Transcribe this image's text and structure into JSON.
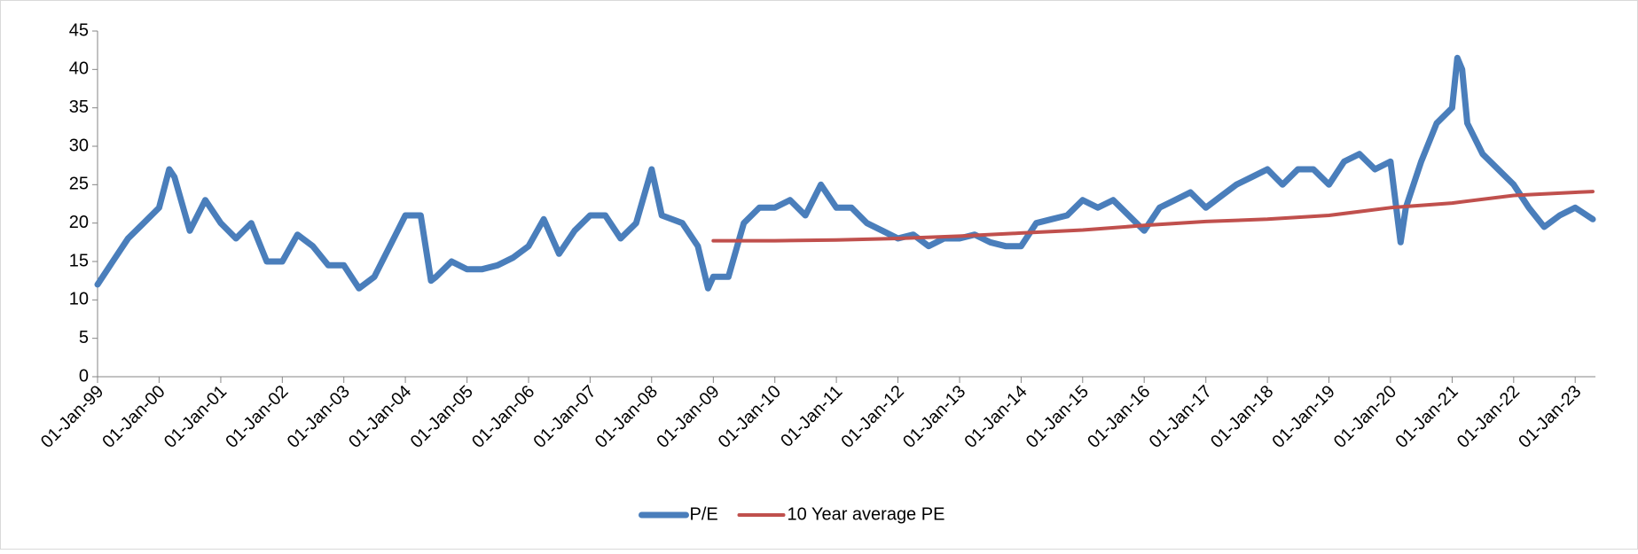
{
  "chart_data": {
    "type": "line",
    "legend": "bottom",
    "xlim": [
      "1999-01-01",
      "2023-05-01"
    ],
    "xticks": [
      {
        "value": "1999-01-01",
        "label": "01-Jan-99"
      },
      {
        "value": "2000-01-01",
        "label": "01-Jan-00"
      },
      {
        "value": "2001-01-01",
        "label": "01-Jan-01"
      },
      {
        "value": "2002-01-01",
        "label": "01-Jan-02"
      },
      {
        "value": "2003-01-01",
        "label": "01-Jan-03"
      },
      {
        "value": "2004-01-01",
        "label": "01-Jan-04"
      },
      {
        "value": "2005-01-01",
        "label": "01-Jan-05"
      },
      {
        "value": "2006-01-01",
        "label": "01-Jan-06"
      },
      {
        "value": "2007-01-01",
        "label": "01-Jan-07"
      },
      {
        "value": "2008-01-01",
        "label": "01-Jan-08"
      },
      {
        "value": "2009-01-01",
        "label": "01-Jan-09"
      },
      {
        "value": "2010-01-01",
        "label": "01-Jan-10"
      },
      {
        "value": "2011-01-01",
        "label": "01-Jan-11"
      },
      {
        "value": "2012-01-01",
        "label": "01-Jan-12"
      },
      {
        "value": "2013-01-01",
        "label": "01-Jan-13"
      },
      {
        "value": "2014-01-01",
        "label": "01-Jan-14"
      },
      {
        "value": "2015-01-01",
        "label": "01-Jan-15"
      },
      {
        "value": "2016-01-01",
        "label": "01-Jan-16"
      },
      {
        "value": "2017-01-01",
        "label": "01-Jan-17"
      },
      {
        "value": "2018-01-01",
        "label": "01-Jan-18"
      },
      {
        "value": "2019-01-01",
        "label": "01-Jan-19"
      },
      {
        "value": "2020-01-01",
        "label": "01-Jan-20"
      },
      {
        "value": "2021-01-01",
        "label": "01-Jan-21"
      },
      {
        "value": "2022-01-01",
        "label": "01-Jan-22"
      },
      {
        "value": "2023-01-01",
        "label": "01-Jan-23"
      }
    ],
    "ylim": [
      0,
      45
    ],
    "yticks": [
      0,
      5,
      10,
      15,
      20,
      25,
      30,
      35,
      40,
      45
    ],
    "series": [
      {
        "name": "P/E",
        "color": "#4a7ebb",
        "x": [
          "1999-01-01",
          "1999-04-01",
          "1999-07-01",
          "1999-10-01",
          "2000-01-01",
          "2000-03-01",
          "2000-04-01",
          "2000-07-01",
          "2000-10-01",
          "2001-01-01",
          "2001-04-01",
          "2001-07-01",
          "2001-10-01",
          "2002-01-01",
          "2002-04-01",
          "2002-07-01",
          "2002-10-01",
          "2003-01-01",
          "2003-04-01",
          "2003-07-01",
          "2003-10-01",
          "2004-01-01",
          "2004-04-01",
          "2004-06-01",
          "2004-07-01",
          "2004-10-01",
          "2005-01-01",
          "2005-04-01",
          "2005-07-01",
          "2005-10-01",
          "2006-01-01",
          "2006-04-01",
          "2006-07-01",
          "2006-10-01",
          "2007-01-01",
          "2007-04-01",
          "2007-07-01",
          "2007-10-01",
          "2008-01-01",
          "2008-03-01",
          "2008-07-01",
          "2008-10-01",
          "2008-12-01",
          "2009-01-01",
          "2009-04-01",
          "2009-07-01",
          "2009-10-01",
          "2010-01-01",
          "2010-04-01",
          "2010-07-01",
          "2010-10-01",
          "2011-01-01",
          "2011-04-01",
          "2011-07-01",
          "2011-10-01",
          "2012-01-01",
          "2012-04-01",
          "2012-07-01",
          "2012-10-01",
          "2013-01-01",
          "2013-04-01",
          "2013-07-01",
          "2013-10-01",
          "2014-01-01",
          "2014-04-01",
          "2014-07-01",
          "2014-10-01",
          "2015-01-01",
          "2015-04-01",
          "2015-07-01",
          "2015-10-01",
          "2016-01-01",
          "2016-04-01",
          "2016-07-01",
          "2016-10-01",
          "2017-01-01",
          "2017-04-01",
          "2017-07-01",
          "2017-10-01",
          "2018-01-01",
          "2018-04-01",
          "2018-07-01",
          "2018-10-01",
          "2019-01-01",
          "2019-04-01",
          "2019-07-01",
          "2019-10-01",
          "2020-01-01",
          "2020-03-01",
          "2020-04-01",
          "2020-07-01",
          "2020-10-01",
          "2021-01-01",
          "2021-02-01",
          "2021-03-01",
          "2021-04-01",
          "2021-07-01",
          "2021-10-01",
          "2022-01-01",
          "2022-04-01",
          "2022-07-01",
          "2022-10-01",
          "2023-01-01",
          "2023-04-15"
        ],
        "values": [
          12,
          15,
          18,
          20,
          22,
          27,
          26,
          19,
          23,
          20,
          18,
          20,
          15,
          15,
          18.5,
          17,
          14.5,
          14.5,
          11.5,
          13,
          17,
          21,
          21,
          12.5,
          13,
          15,
          14,
          14,
          14.5,
          15.5,
          17,
          20.5,
          16,
          19,
          21,
          21,
          18,
          20,
          27,
          21,
          20,
          17,
          11.5,
          13,
          13,
          20,
          22,
          22,
          23,
          21,
          25,
          22,
          22,
          20,
          19,
          18,
          18.5,
          17,
          18,
          18,
          18.5,
          17.5,
          17,
          17,
          20,
          20.5,
          21,
          23,
          22,
          23,
          21,
          19,
          22,
          23,
          24,
          22,
          23.5,
          25,
          26,
          27,
          25,
          27,
          27,
          25,
          28,
          29,
          27,
          28,
          17.5,
          22,
          28,
          33,
          35,
          41.5,
          40,
          33,
          29,
          27,
          25,
          22,
          19.5,
          21,
          22,
          20.5
        ]
      },
      {
        "name": "10 Year average PE",
        "color": "#c0504d",
        "x": [
          "2009-01-01",
          "2010-01-01",
          "2011-01-01",
          "2012-01-01",
          "2013-01-01",
          "2014-01-01",
          "2015-01-01",
          "2016-01-01",
          "2017-01-01",
          "2018-01-01",
          "2019-01-01",
          "2020-01-01",
          "2021-01-01",
          "2022-01-01",
          "2023-01-01",
          "2023-04-15"
        ],
        "values": [
          17.7,
          17.7,
          17.8,
          18.0,
          18.3,
          18.7,
          19.1,
          19.7,
          20.2,
          20.5,
          21.0,
          22.0,
          22.6,
          23.6,
          24.0,
          24.1
        ]
      }
    ]
  }
}
